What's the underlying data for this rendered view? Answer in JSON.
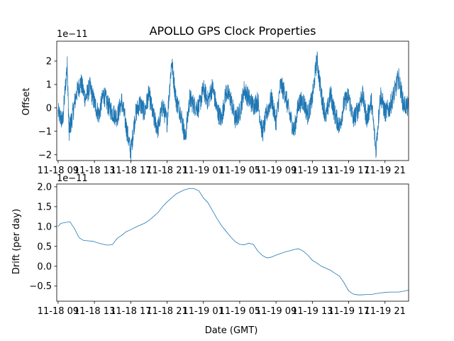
{
  "chart_data": [
    {
      "type": "line",
      "title": "APOLLO GPS Clock Properties",
      "ylabel": "Offset",
      "xlabel": "",
      "y_multiplier": "1e−11",
      "ylim": [
        -2.25,
        2.85
      ],
      "xlim_hours": [
        -0.15,
        38.6
      ],
      "yticks": [
        -2,
        -1,
        0,
        1,
        2
      ],
      "ytick_labels": [
        "−2",
        "−1",
        "0",
        "1",
        "2"
      ],
      "xtick_labels": [
        "11-18 09",
        "11-18 13",
        "11-18 17",
        "11-18 21",
        "11-19 01",
        "11-19 05",
        "11-19 09",
        "11-19 13",
        "11-19 17",
        "11-19 21"
      ],
      "xtick_hours": [
        0,
        4,
        8,
        12,
        16,
        20,
        24,
        28,
        32,
        36
      ],
      "series": [
        {
          "color": "#1f77b4",
          "x_hours": [
            0,
            0.5,
            1.0,
            1.2,
            1.5,
            2.0,
            2.5,
            3.0,
            3.5,
            4.0,
            4.5,
            5.0,
            5.5,
            6.0,
            6.5,
            7.0,
            7.5,
            8.0,
            8.5,
            9.0,
            9.5,
            10.0,
            10.5,
            11.0,
            11.5,
            12.0,
            12.5,
            13.0,
            13.5,
            14.0,
            14.5,
            15.0,
            15.5,
            16.0,
            16.5,
            17.0,
            17.5,
            18.0,
            18.5,
            19.0,
            19.5,
            20.0,
            20.5,
            21.0,
            21.5,
            22.0,
            22.5,
            23.0,
            23.5,
            24.0,
            24.5,
            25.0,
            25.5,
            26.0,
            26.5,
            27.0,
            27.5,
            28.0,
            28.5,
            29.0,
            29.5,
            30.0,
            30.5,
            31.0,
            31.5,
            32.0,
            32.5,
            33.0,
            33.5,
            34.0,
            34.5,
            35.0,
            35.5,
            36.0,
            36.5,
            37.0,
            37.5,
            38.0,
            38.6
          ],
          "y": [
            -0.2,
            -0.6,
            1.9,
            -1.0,
            -0.5,
            0.6,
            1.1,
            0.4,
            0.9,
            0.2,
            -0.3,
            0.6,
            0.1,
            -0.2,
            -0.4,
            0.3,
            -0.8,
            -1.9,
            -0.3,
            0.2,
            -0.2,
            0.6,
            -0.4,
            -0.9,
            0.1,
            -0.6,
            2.0,
            0.3,
            -0.2,
            -1.3,
            0.4,
            0.1,
            0.0,
            0.8,
            0.3,
            0.9,
            -0.1,
            -0.5,
            0.7,
            0.4,
            -0.5,
            -0.2,
            0.8,
            0.4,
            0.1,
            0.3,
            -1.1,
            -0.2,
            0.4,
            -0.6,
            1.0,
            0.6,
            -0.3,
            -1.0,
            0.2,
            0.3,
            -0.3,
            0.4,
            2.1,
            0.5,
            -0.4,
            0.6,
            -0.3,
            -0.8,
            0.2,
            0.5,
            -0.5,
            -0.1,
            0.6,
            -0.5,
            0.3,
            -1.8,
            0.6,
            -0.2,
            0.0,
            0.6,
            1.3,
            0.2,
            0.0
          ]
        }
      ]
    },
    {
      "type": "line",
      "title": "",
      "ylabel": "Drift (per day)",
      "xlabel": "Date (GMT)",
      "y_multiplier": "1e−11",
      "ylim": [
        -0.88,
        2.07
      ],
      "xlim_hours": [
        -0.15,
        38.6
      ],
      "yticks": [
        -0.5,
        0.0,
        0.5,
        1.0,
        1.5,
        2.0
      ],
      "ytick_labels": [
        "−0.5",
        "0.0",
        "0.5",
        "1.0",
        "1.5",
        "2.0"
      ],
      "xtick_labels": [
        "11-18 09",
        "11-18 13",
        "11-18 17",
        "11-18 21",
        "11-19 01",
        "11-19 05",
        "11-19 09",
        "11-19 13",
        "11-19 17",
        "11-19 21"
      ],
      "xtick_hours": [
        0,
        4,
        8,
        12,
        16,
        20,
        24,
        28,
        32,
        36
      ],
      "series": [
        {
          "color": "#1f77b4",
          "x_hours": [
            0,
            0.3,
            0.8,
            1.3,
            1.8,
            2.3,
            2.8,
            3.3,
            3.8,
            4.5,
            5.0,
            5.5,
            6.0,
            6.5,
            7.0,
            7.5,
            8.0,
            8.5,
            9.0,
            9.5,
            10.0,
            10.5,
            11.0,
            11.5,
            12.0,
            12.5,
            13.0,
            13.5,
            14.0,
            14.5,
            15.0,
            15.5,
            16.0,
            16.5,
            17.0,
            17.5,
            18.0,
            18.5,
            19.0,
            19.5,
            20.0,
            20.5,
            21.0,
            21.5,
            22.0,
            22.5,
            23.0,
            23.5,
            24.0,
            24.5,
            25.0,
            25.5,
            26.0,
            26.5,
            27.0,
            27.5,
            28.0,
            28.5,
            29.0,
            29.5,
            30.0,
            30.5,
            31.0,
            31.5,
            32.0,
            32.5,
            33.0,
            33.5,
            34.0,
            34.5,
            35.0,
            35.5,
            36.0,
            36.5,
            37.0,
            37.5,
            38.0,
            38.6
          ],
          "y": [
            1.0,
            1.08,
            1.1,
            1.12,
            0.95,
            0.72,
            0.65,
            0.64,
            0.63,
            0.58,
            0.55,
            0.53,
            0.55,
            0.7,
            0.78,
            0.87,
            0.92,
            0.98,
            1.03,
            1.08,
            1.15,
            1.25,
            1.35,
            1.5,
            1.62,
            1.72,
            1.82,
            1.88,
            1.93,
            1.96,
            1.95,
            1.9,
            1.72,
            1.6,
            1.4,
            1.2,
            1.02,
            0.88,
            0.74,
            0.62,
            0.55,
            0.54,
            0.58,
            0.55,
            0.38,
            0.27,
            0.21,
            0.23,
            0.28,
            0.32,
            0.36,
            0.39,
            0.42,
            0.44,
            0.38,
            0.28,
            0.15,
            0.08,
            0.0,
            -0.05,
            -0.1,
            -0.18,
            -0.25,
            -0.42,
            -0.62,
            -0.7,
            -0.72,
            -0.72,
            -0.71,
            -0.71,
            -0.69,
            -0.67,
            -0.66,
            -0.65,
            -0.65,
            -0.65,
            -0.63,
            -0.6
          ]
        }
      ]
    }
  ]
}
